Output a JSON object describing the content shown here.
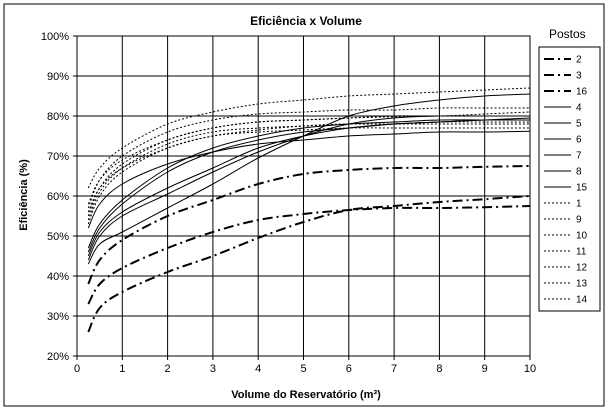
{
  "chart_data": {
    "type": "line",
    "title": "Eficiência  x Volume",
    "xlabel": "Volume do Reservatório  (m³)",
    "ylabel": "Eficiência (%)",
    "xlim": [
      0,
      10
    ],
    "ylim": [
      20,
      100
    ],
    "xticks": [
      "0",
      "1",
      "2",
      "3",
      "4",
      "5",
      "6",
      "7",
      "8",
      "9",
      "10"
    ],
    "yticks": [
      "20%",
      "30%",
      "40%",
      "50%",
      "60%",
      "70%",
      "80%",
      "90%",
      "100%"
    ],
    "grid": true,
    "legend_title": "Postos",
    "legend_placement": "right",
    "x": [
      0.25,
      0.5,
      1,
      2,
      3,
      4,
      5,
      6,
      7,
      8,
      9,
      10
    ],
    "series": [
      {
        "name": "2",
        "style": "dashdot",
        "values": [
          38,
          44,
          49,
          55,
          59,
          63,
          65.5,
          66.5,
          67,
          67,
          67.3,
          67.5
        ]
      },
      {
        "name": "3",
        "style": "dashdot",
        "values": [
          33,
          38,
          42,
          47,
          51,
          54,
          55.5,
          56.5,
          57,
          57,
          57.2,
          57.5
        ]
      },
      {
        "name": "16",
        "style": "dashdot",
        "values": [
          26,
          32,
          36,
          41,
          45,
          49.5,
          53.5,
          56.5,
          57.5,
          58.5,
          59.2,
          60
        ]
      },
      {
        "name": "4",
        "style": "solid",
        "values": [
          47,
          53,
          59,
          67,
          72,
          75,
          77,
          78,
          78.5,
          79,
          79,
          79
        ]
      },
      {
        "name": "5",
        "style": "solid",
        "values": [
          46,
          52,
          58,
          66,
          71,
          74,
          76,
          77,
          78,
          78.5,
          79,
          79
        ]
      },
      {
        "name": "6",
        "style": "solid",
        "values": [
          52,
          58,
          63,
          68,
          71,
          73,
          74,
          75,
          75.5,
          76,
          76,
          76.2
        ]
      },
      {
        "name": "7",
        "style": "solid",
        "values": [
          45,
          51,
          56,
          62,
          67,
          72,
          75,
          77,
          78,
          78.5,
          79,
          79.5
        ]
      },
      {
        "name": "8",
        "style": "solid",
        "values": [
          44,
          50,
          55,
          60.5,
          66,
          71,
          75,
          78,
          79.5,
          80,
          80,
          80
        ]
      },
      {
        "name": "15",
        "style": "solid",
        "values": [
          43,
          48,
          51,
          57,
          63,
          69.5,
          75,
          80,
          82.5,
          84,
          85,
          85.5
        ]
      },
      {
        "name": "1",
        "style": "dotted",
        "values": [
          62,
          67,
          72,
          78,
          81,
          83,
          84,
          85,
          85.5,
          86,
          86.5,
          87
        ]
      },
      {
        "name": "9",
        "style": "dotted",
        "values": [
          58,
          64,
          69,
          74,
          77,
          78.5,
          79,
          79.5,
          79.8,
          80,
          80,
          80
        ]
      },
      {
        "name": "10",
        "style": "dotted",
        "values": [
          56,
          62,
          67,
          72,
          75,
          76.5,
          77.5,
          78,
          78,
          78.5,
          78.5,
          78.5
        ]
      },
      {
        "name": "11",
        "style": "dotted",
        "values": [
          54,
          61,
          67,
          73,
          76,
          77,
          77.5,
          78,
          78,
          78,
          78,
          78
        ]
      },
      {
        "name": "12",
        "style": "dotted",
        "values": [
          55,
          62,
          68,
          74,
          77,
          78.5,
          79,
          79.5,
          80,
          80,
          80.5,
          81
        ]
      },
      {
        "name": "13",
        "style": "dotted",
        "values": [
          53,
          60,
          66,
          72,
          75,
          76,
          76.5,
          77,
          77,
          77,
          77,
          77
        ]
      },
      {
        "name": "14",
        "style": "dotted",
        "values": [
          57,
          64,
          70,
          76,
          79,
          80.5,
          81,
          81.5,
          81.5,
          82,
          82,
          82
        ]
      }
    ]
  }
}
